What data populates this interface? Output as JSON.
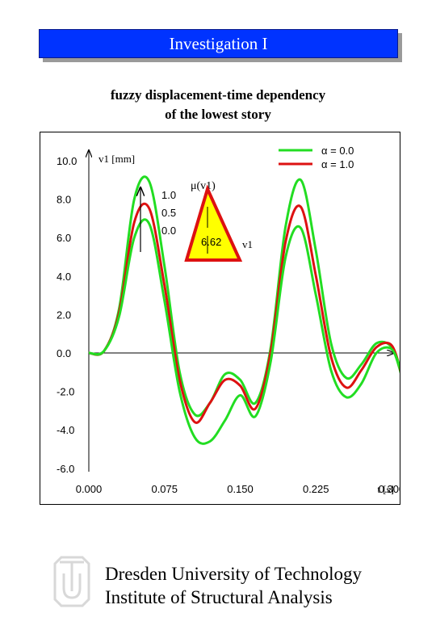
{
  "header": {
    "title": "Investigation I",
    "subtitle_line1": "fuzzy displacement-time dependency",
    "subtitle_line2": "of the lowest story"
  },
  "footer": {
    "line1": "Dresden University of Technology",
    "line2": "Institute of Structural Analysis"
  },
  "colors": {
    "banner": "#0033ff",
    "alpha0": "#22dd22",
    "alpha1": "#dd1111",
    "membership_fill": "#ffff00"
  },
  "chart_data": {
    "type": "line",
    "title": "",
    "xlabel": "t [s]",
    "ylabel": "v1 [mm]",
    "xlim": [
      0.0,
      0.34
    ],
    "ylim": [
      -6.0,
      10.5
    ],
    "x_ticks": [
      "0.000",
      "0.075",
      "0.150",
      "0.225",
      "0.300"
    ],
    "y_ticks": [
      "10.0",
      "8.0",
      "6.0",
      "4.0",
      "2.0",
      "0.0",
      "-2.0",
      "-4.0",
      "-6.0"
    ],
    "legend": {
      "position": "top-right",
      "entries": [
        "α = 0.0",
        "α = 1.0"
      ]
    },
    "series": [
      {
        "name": "α = 0.0",
        "role": "upper",
        "x": [
          0.0,
          0.015,
          0.03,
          0.045,
          0.06,
          0.075,
          0.09,
          0.105,
          0.12,
          0.135,
          0.15,
          0.165,
          0.18,
          0.195,
          0.21,
          0.225,
          0.24,
          0.255,
          0.27,
          0.285,
          0.3,
          0.31
        ],
        "y": [
          0.0,
          0.1,
          2.3,
          8.0,
          8.9,
          4.5,
          -1.0,
          -3.2,
          -2.6,
          -1.1,
          -1.4,
          -2.6,
          0.2,
          6.6,
          9.0,
          5.3,
          0.5,
          -1.3,
          -0.6,
          0.5,
          0.3,
          -1.2
        ]
      },
      {
        "name": "α = 1.0",
        "role": "crisp",
        "x": [
          0.0,
          0.015,
          0.03,
          0.045,
          0.06,
          0.075,
          0.09,
          0.105,
          0.12,
          0.135,
          0.15,
          0.165,
          0.18,
          0.195,
          0.21,
          0.225,
          0.24,
          0.255,
          0.27,
          0.285,
          0.3,
          0.31
        ],
        "y": [
          0.0,
          0.1,
          2.1,
          6.8,
          7.5,
          3.5,
          -1.4,
          -3.6,
          -2.6,
          -1.4,
          -1.7,
          -2.9,
          0.0,
          5.8,
          7.6,
          4.0,
          -0.2,
          -1.8,
          -0.9,
          0.3,
          0.4,
          -1.1
        ]
      },
      {
        "name": "α = 0.0",
        "role": "lower",
        "x": [
          0.0,
          0.015,
          0.03,
          0.045,
          0.06,
          0.075,
          0.09,
          0.105,
          0.12,
          0.135,
          0.15,
          0.165,
          0.18,
          0.195,
          0.21,
          0.225,
          0.24,
          0.255,
          0.27,
          0.285,
          0.3,
          0.31
        ],
        "y": [
          0.0,
          0.1,
          1.9,
          6.0,
          6.7,
          2.7,
          -2.0,
          -4.4,
          -4.6,
          -3.5,
          -2.2,
          -3.3,
          -0.5,
          5.0,
          6.5,
          3.0,
          -0.9,
          -2.3,
          -1.6,
          0.0,
          0.2,
          -1.0
        ]
      }
    ],
    "inset": {
      "title": "μ(v1)",
      "y_ticks": [
        "1.0",
        "0.5",
        "0.0"
      ],
      "peak_label": "6.62",
      "x_label": "v1"
    }
  }
}
